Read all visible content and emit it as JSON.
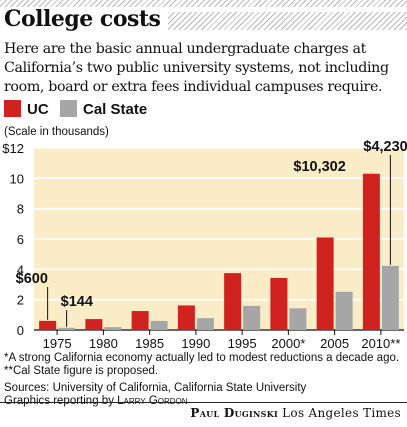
{
  "title": "College costs",
  "subtitle": "Here are the basic annual undergraduate charges at California’s two public university systems, not including room, board or extra fees individual campuses require.",
  "legend": [
    {
      "label": "UC",
      "color": "#d0221f"
    },
    {
      "label": "Cal State",
      "color": "#a6a6a6"
    }
  ],
  "scale_note": "(Scale in thousands)",
  "footnotes": [
    "*A strong California economy actually led to modest reductions a decade ago.",
    "**Cal State figure is proposed."
  ],
  "sources": "Sources: University of California, California State University",
  "reporting_prefix": "Graphics reporting by",
  "reporting_name": "Larry Gordon",
  "credit_name": "Paul Duginski",
  "credit_org": "Los Angeles Times",
  "colors": {
    "uc": "#d0221f",
    "csu": "#a6a6a6",
    "plot_bg": "#fbecc8",
    "grid": "#ffffff"
  },
  "chart_data": {
    "type": "bar",
    "categories": [
      "1975",
      "1980",
      "1985",
      "1990",
      "1995",
      "2000*",
      "2005",
      "2010**"
    ],
    "series": [
      {
        "name": "UC",
        "values": [
          0.6,
          0.72,
          1.25,
          1.62,
          3.75,
          3.43,
          6.1,
          10.302
        ]
      },
      {
        "name": "Cal State",
        "values": [
          0.144,
          0.19,
          0.6,
          0.78,
          1.59,
          1.43,
          2.52,
          4.23
        ]
      }
    ],
    "ylim": [
      0,
      12
    ],
    "yticks": [
      0,
      2,
      4,
      6,
      8,
      10,
      12
    ],
    "ytick_labels": [
      "0",
      "2",
      "4",
      "6",
      "8",
      "10",
      "$12"
    ],
    "grid": true,
    "legend_position": "top-left",
    "annotations": [
      {
        "text": "$600",
        "category": "1975",
        "series": "UC"
      },
      {
        "text": "$144",
        "category": "1975",
        "series": "Cal State"
      },
      {
        "text": "$10,302",
        "category": "2010**",
        "series": "UC"
      },
      {
        "text": "$4,230",
        "category": "2010**",
        "series": "Cal State"
      }
    ]
  }
}
